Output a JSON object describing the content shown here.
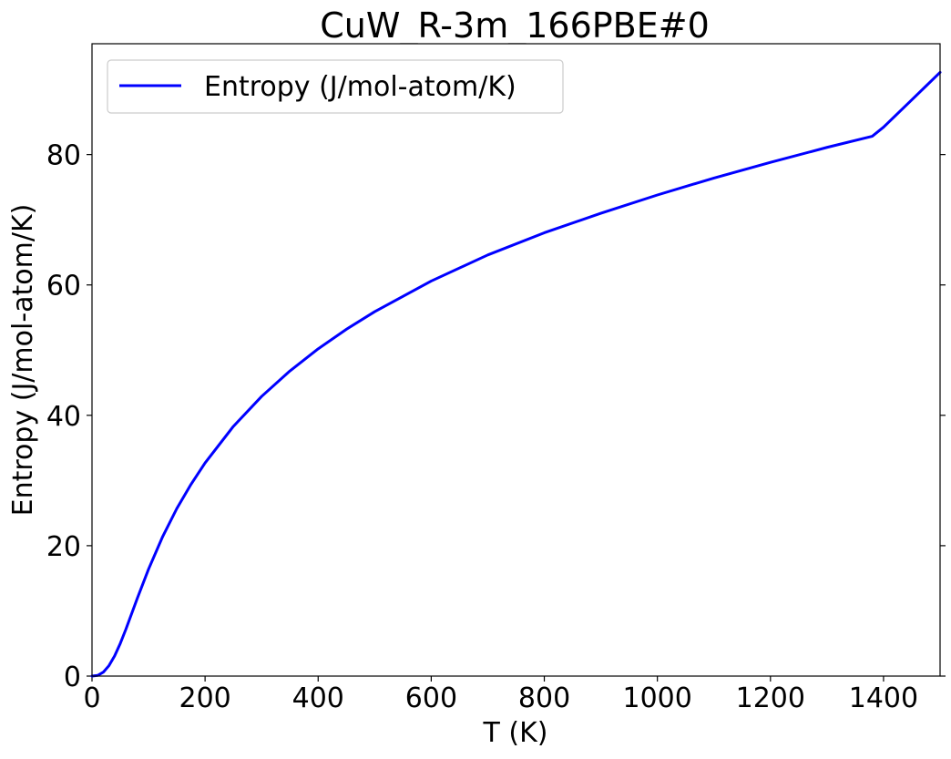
{
  "chart_data": {
    "type": "line",
    "title": "CuW_R-3m_166PBE#0",
    "xlabel": "T (K)",
    "ylabel": "Entropy (J/mol-atom/K)",
    "xlim": [
      0,
      1500
    ],
    "ylim": [
      0,
      97
    ],
    "xticks": [
      0,
      200,
      400,
      600,
      800,
      1000,
      1200,
      1400
    ],
    "yticks": [
      0,
      20,
      40,
      60,
      80
    ],
    "grid": false,
    "legend_position": "upper-left",
    "series": [
      {
        "name": "Entropy (J/mol-atom/K)",
        "color": "#0000ff",
        "x": [
          0,
          10,
          20,
          30,
          40,
          50,
          60,
          80,
          100,
          125,
          150,
          175,
          200,
          250,
          300,
          350,
          400,
          450,
          500,
          600,
          700,
          800,
          900,
          1000,
          1100,
          1200,
          1300,
          1380,
          1400,
          1450,
          1500
        ],
        "y": [
          0,
          0.1,
          0.6,
          1.6,
          3.1,
          5.0,
          7.2,
          11.9,
          16.4,
          21.4,
          25.7,
          29.4,
          32.7,
          38.3,
          42.9,
          46.8,
          50.2,
          53.2,
          55.9,
          60.6,
          64.6,
          68.0,
          71.0,
          73.8,
          76.4,
          78.8,
          81.1,
          82.8,
          84.2,
          88.4,
          92.6
        ]
      }
    ]
  }
}
